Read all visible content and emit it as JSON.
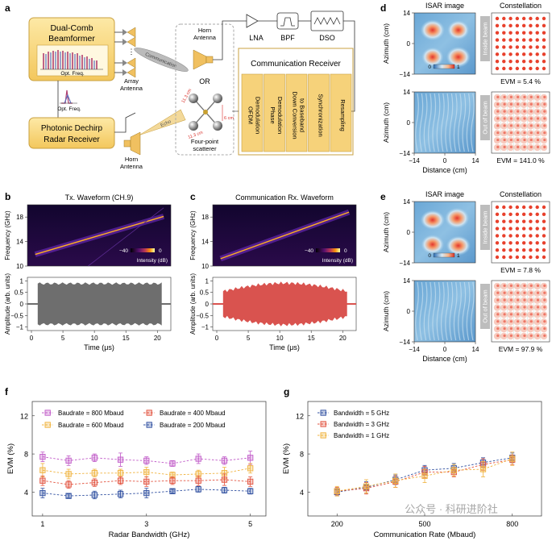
{
  "panel_labels": {
    "a": "a",
    "b": "b",
    "c": "c",
    "d": "d",
    "e": "e",
    "f": "f",
    "g": "g"
  },
  "panel_a": {
    "beamformer_line1": "Dual-Comb",
    "beamformer_line2": "Beamformer",
    "opt_freq_label": "Opt. Freq.",
    "opt_freq_label2": "Opt. Freq.",
    "array_antenna_line1": "Array",
    "array_antenna_line2": "Antenna",
    "radar_rx_line1": "Photonic Dechirp",
    "radar_rx_line2": "Radar Receiver",
    "horn_line1": "Horn",
    "horn_line2": "Antenna",
    "beam_label": "Communication",
    "echo_label": "Echo",
    "horn2_line1": "Horn",
    "horn2_line2": "Antenna",
    "or_label": "OR",
    "dim1": "11.3 cm",
    "dim2": "11.3 cm",
    "dim3": "6 cm",
    "scatterer_line1": "Four-point",
    "scatterer_line2": "scatterer",
    "lna": "LNA",
    "bpf": "BPF",
    "dso": "DSO",
    "comm_rx_title": "Communication Receiver",
    "blocks": [
      [
        "OFDM",
        "Demodulation"
      ],
      [
        "Phase",
        "Demodulation"
      ],
      [
        "Down Conversion",
        "to Baseband"
      ],
      [
        "Synchronization"
      ],
      [
        "Resampling"
      ]
    ]
  },
  "panel_b": {
    "title": "Tx. Waveform (CH.9)",
    "ylabel_top": "Frequency (GHz)",
    "ylabel_bottom": "Amplitude (arb. units)",
    "xlabel": "Time (μs)",
    "yticks_top": [
      "18",
      "14",
      "10"
    ],
    "yticks_bottom": [
      "1",
      "0.5",
      "0",
      "−0.5",
      "−1"
    ],
    "xticks": [
      "0",
      "5",
      "10",
      "15",
      "20"
    ],
    "cbar_min": "−40",
    "cbar_max": "0",
    "cbar_label": "Intensity (dB)",
    "trace_color": "#6e6e6e"
  },
  "panel_c": {
    "title": "Communication Rx. Waveform",
    "ylabel_top": "Frequency (GHz)",
    "ylabel_bottom": "Amplitude (arb. units)",
    "xlabel": "Time (μs)",
    "yticks_top": [
      "18",
      "14",
      "10"
    ],
    "yticks_bottom": [
      "1",
      "0.5",
      "0",
      "−0.5",
      "−1"
    ],
    "xticks": [
      "0",
      "5",
      "10",
      "15",
      "20"
    ],
    "cbar_min": "−40",
    "cbar_max": "0",
    "cbar_label": "Intensity (dB)",
    "trace_color": "#d9534f"
  },
  "panel_d": {
    "isar_title": "ISAR image",
    "const_title": "Constellation",
    "ylabel": "Azimuth (cm)",
    "xlabel": "Distance (cm)",
    "ticks_y": [
      "14",
      "0",
      "−14"
    ],
    "ticks_x": [
      "−14",
      "0",
      "14"
    ],
    "inside_label": "Inside beam",
    "outside_label": "Out of beam",
    "evm_inside": "EVM = 5.4 %",
    "evm_outside": "EVM = 141.0 %",
    "cbar_min": "0",
    "cbar_max": "1"
  },
  "panel_e": {
    "isar_title": "ISAR image",
    "const_title": "Constellation",
    "ylabel": "Azimuth (cm)",
    "xlabel": "Distance (cm)",
    "ticks_y": [
      "14",
      "0",
      "−14"
    ],
    "ticks_x": [
      "−14",
      "0",
      "14"
    ],
    "inside_label": "Inside beam",
    "outside_label": "Out of beam",
    "evm_inside": "EVM = 7.8 %",
    "evm_outside": "EVM = 97.9 %",
    "cbar_min": "0",
    "cbar_max": "1"
  },
  "watermark": "公众号 · 科研进阶社",
  "chart_data": [
    {
      "id": "f",
      "type": "line",
      "xlabel": "Radar Bandwidth (GHz)",
      "ylabel": "EVM (%)",
      "xlim": [
        0.8,
        5.3
      ],
      "ylim": [
        1.5,
        13.5
      ],
      "xticks": [
        1,
        3,
        5
      ],
      "yticks": [
        4,
        8,
        12
      ],
      "x": [
        1,
        1.5,
        2,
        2.5,
        3,
        3.5,
        4,
        4.5,
        5
      ],
      "series": [
        {
          "name": "Baudrate = 800 Mbaud",
          "color": "#c05ac8",
          "values": [
            7.7,
            7.3,
            7.6,
            7.4,
            7.3,
            7.0,
            7.5,
            7.3,
            7.6
          ],
          "err": [
            0.5,
            0.5,
            0.4,
            0.7,
            0.4,
            0.3,
            0.5,
            0.4,
            0.7
          ]
        },
        {
          "name": "Baudrate = 600 Mbaud",
          "color": "#f0b23c",
          "values": [
            6.3,
            5.9,
            6.0,
            6.0,
            6.1,
            5.8,
            5.9,
            6.0,
            6.5
          ],
          "err": [
            0.7,
            0.5,
            0.4,
            0.4,
            0.5,
            0.3,
            0.4,
            0.6,
            0.5
          ]
        },
        {
          "name": "Baudrate = 400 Mbaud",
          "color": "#e2513d",
          "values": [
            5.2,
            4.8,
            5.0,
            5.2,
            5.1,
            5.2,
            5.2,
            5.3,
            5.1
          ],
          "err": [
            0.5,
            0.4,
            0.4,
            0.4,
            0.5,
            0.4,
            0.5,
            0.6,
            0.5
          ]
        },
        {
          "name": "Baudrate = 200 Mbaud",
          "color": "#2f4fa0",
          "values": [
            3.9,
            3.6,
            3.7,
            3.8,
            3.9,
            4.1,
            4.3,
            4.2,
            4.1
          ],
          "err": [
            0.5,
            0.2,
            0.4,
            0.4,
            0.5,
            0.2,
            0.3,
            0.3,
            0.3
          ]
        }
      ]
    },
    {
      "id": "g",
      "type": "line",
      "xlabel": "Communication Rate (Mbaud)",
      "ylabel": "EVM (%)",
      "xlim": [
        100,
        900
      ],
      "ylim": [
        1.5,
        13.5
      ],
      "xticks": [
        200,
        500,
        800
      ],
      "yticks": [
        4,
        8,
        12
      ],
      "x": [
        200,
        300,
        400,
        500,
        600,
        700,
        800
      ],
      "series": [
        {
          "name": "Bandwidth = 5 GHz",
          "color": "#2f4fa0",
          "values": [
            4.0,
            4.5,
            5.3,
            6.3,
            6.5,
            7.1,
            7.6
          ],
          "err": [
            0.4,
            0.6,
            0.5,
            0.5,
            0.5,
            0.5,
            0.5
          ]
        },
        {
          "name": "Bandwidth = 3 GHz",
          "color": "#e2513d",
          "values": [
            4.1,
            4.4,
            5.1,
            6.1,
            6.1,
            6.9,
            7.4
          ],
          "err": [
            0.4,
            0.6,
            0.6,
            0.6,
            0.5,
            0.6,
            0.5
          ]
        },
        {
          "name": "Bandwidth = 1 GHz",
          "color": "#f0b23c",
          "values": [
            4.1,
            4.6,
            5.2,
            5.7,
            6.3,
            6.4,
            7.5
          ],
          "err": [
            0.5,
            0.7,
            0.7,
            0.7,
            0.6,
            0.8,
            0.7
          ]
        }
      ]
    }
  ]
}
